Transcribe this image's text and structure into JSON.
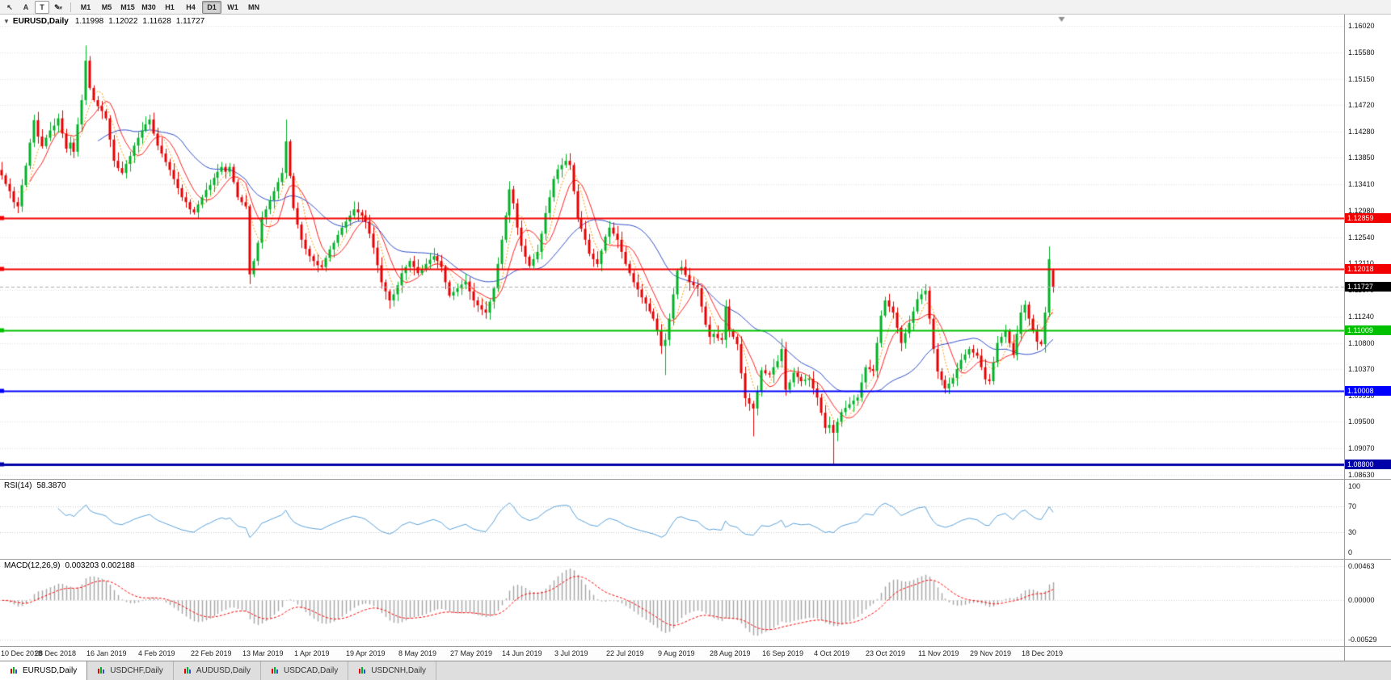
{
  "toolbar": {
    "tools": [
      {
        "id": "cursor-tool",
        "glyph": "↖"
      },
      {
        "id": "crosshair-tool",
        "glyph": "A"
      },
      {
        "id": "text-tool",
        "glyph": "T"
      },
      {
        "id": "draw-tool",
        "glyph": "✎"
      }
    ],
    "timeframes": [
      "M1",
      "M5",
      "M15",
      "M30",
      "H1",
      "H4",
      "D1",
      "W1",
      "MN"
    ],
    "active_timeframe": "D1"
  },
  "chart_header": {
    "collapse_glyph": "▼",
    "symbol": "EURUSD,Daily",
    "open": "1.11998",
    "high": "1.12022",
    "low": "1.11628",
    "close": "1.11727"
  },
  "price_axis": {
    "ticks": [
      "1.16020",
      "1.15580",
      "1.15150",
      "1.14720",
      "1.14280",
      "1.13850",
      "1.13410",
      "1.12980",
      "1.12540",
      "1.12110",
      "1.11670",
      "1.11240",
      "1.10800",
      "1.10370",
      "1.09930",
      "1.09500",
      "1.09070",
      "1.08630"
    ]
  },
  "levels": [
    {
      "label": "1.12859",
      "value": 1.12859,
      "color": "#f20000",
      "width": 2
    },
    {
      "label": "1.12018",
      "value": 1.12018,
      "color": "#f20000",
      "width": 2
    },
    {
      "label": "1.11009",
      "value": 1.11009,
      "color": "#00c000",
      "width": 2
    },
    {
      "label": "1.10008",
      "value": 1.10008,
      "color": "#0000ff",
      "width": 2
    },
    {
      "label": "1.08800",
      "value": 1.088,
      "color": "#0000a8",
      "width": 3
    }
  ],
  "current_price": {
    "label": "1.11727",
    "value": 1.11727
  },
  "rsi_panel": {
    "name": "RSI(14)",
    "value_text": "58.3870",
    "ticks": [
      {
        "label": "100",
        "value": 100
      },
      {
        "label": "70",
        "value": 70
      },
      {
        "label": "30",
        "value": 30
      },
      {
        "label": "0",
        "value": 0
      }
    ],
    "level_lines": [
      70,
      30
    ]
  },
  "macd_panel": {
    "name": "MACD(12,26,9)",
    "value_text": "0.003203 0.002188",
    "ticks": [
      {
        "label": "0.00463",
        "value": 0.00463
      },
      {
        "label": "0.00000",
        "value": 0.0
      },
      {
        "label": "-0.00529",
        "value": -0.00529
      }
    ]
  },
  "date_axis": {
    "labels": [
      "10 Dec 2018",
      "28 Dec 2018",
      "16 Jan 2019",
      "4 Feb 2019",
      "22 Feb 2019",
      "13 Mar 2019",
      "1 Apr 2019",
      "19 Apr 2019",
      "8 May 2019",
      "27 May 2019",
      "14 Jun 2019",
      "3 Jul 2019",
      "22 Jul 2019",
      "9 Aug 2019",
      "28 Aug 2019",
      "16 Sep 2019",
      "4 Oct 2019",
      "23 Oct 2019",
      "11 Nov 2019",
      "29 Nov 2019",
      "18 Dec 2019"
    ],
    "label_every": 13
  },
  "tabs": [
    {
      "label": "EURUSD,Daily",
      "active": true
    },
    {
      "label": "USDCHF,Daily",
      "active": false
    },
    {
      "label": "AUDUSD,Daily",
      "active": false
    },
    {
      "label": "USDCAD,Daily",
      "active": false
    },
    {
      "label": "USDCNH,Daily",
      "active": false
    }
  ],
  "chart_data": {
    "type": "candlestick",
    "symbol": "EURUSD",
    "timeframe": "Daily",
    "price_range": [
      1.0856,
      1.1621
    ],
    "right_margin_fraction": 0.215,
    "up_color": "#00b227",
    "down_color": "#e60000",
    "first_open": 1.1365,
    "closes": [
      1.1356,
      1.1342,
      1.133,
      1.1312,
      1.1305,
      1.134,
      1.1372,
      1.141,
      1.1447,
      1.142,
      1.1404,
      1.1418,
      1.143,
      1.1438,
      1.145,
      1.1425,
      1.14,
      1.141,
      1.1395,
      1.144,
      1.148,
      1.1545,
      1.15,
      1.148,
      1.147,
      1.1462,
      1.145,
      1.1415,
      1.138,
      1.1368,
      1.136,
      1.1375,
      1.1388,
      1.1405,
      1.1418,
      1.143,
      1.144,
      1.1448,
      1.1425,
      1.1405,
      1.1392,
      1.1378,
      1.1365,
      1.135,
      1.1335,
      1.132,
      1.1312,
      1.13,
      1.1295,
      1.1308,
      1.132,
      1.1332,
      1.134,
      1.1352,
      1.1362,
      1.137,
      1.1362,
      1.137,
      1.1345,
      1.132,
      1.1312,
      1.1305,
      1.1193,
      1.1215,
      1.1245,
      1.1287,
      1.13,
      1.1315,
      1.133,
      1.1345,
      1.136,
      1.1412,
      1.1355,
      1.1302,
      1.1275,
      1.125,
      1.1235,
      1.1223,
      1.1215,
      1.1208,
      1.1205,
      1.122,
      1.1234,
      1.1245,
      1.1258,
      1.127,
      1.128,
      1.129,
      1.13,
      1.1295,
      1.129,
      1.128,
      1.126,
      1.1237,
      1.1208,
      1.118,
      1.1165,
      1.115,
      1.116,
      1.1175,
      1.1195,
      1.1205,
      1.1215,
      1.1205,
      1.1195,
      1.1202,
      1.121,
      1.1217,
      1.1223,
      1.1215,
      1.1205,
      1.118,
      1.1158,
      1.1164,
      1.117,
      1.1176,
      1.1181,
      1.1165,
      1.115,
      1.1142,
      1.1135,
      1.113,
      1.1148,
      1.117,
      1.121,
      1.125,
      1.129,
      1.1333,
      1.131,
      1.127,
      1.124,
      1.1222,
      1.1207,
      1.1218,
      1.123,
      1.126,
      1.1294,
      1.132,
      1.135,
      1.1366,
      1.1373,
      1.138,
      1.1373,
      1.133,
      1.1285,
      1.1268,
      1.125,
      1.1227,
      1.1218,
      1.121,
      1.1232,
      1.1255,
      1.127,
      1.126,
      1.125,
      1.123,
      1.121,
      1.1195,
      1.118,
      1.1168,
      1.1155,
      1.1145,
      1.1132,
      1.112,
      1.11,
      1.1075,
      1.1085,
      1.112,
      1.116,
      1.1199,
      1.1205,
      1.1192,
      1.118,
      1.1175,
      1.117,
      1.114,
      1.111,
      1.109,
      1.1095,
      1.1088,
      1.1085,
      1.114,
      1.11,
      1.109,
      1.1078,
      1.103,
      1.0989,
      1.098,
      1.0972,
      1.1,
      1.1035,
      1.103,
      1.1028,
      1.104,
      1.105,
      1.107,
      1.1003,
      1.1015,
      1.1031,
      1.1024,
      1.1017,
      1.1019,
      1.1021,
      1.1005,
      1.099,
      1.0965,
      1.094,
      1.0945,
      1.0932,
      1.095,
      1.0966,
      1.0973,
      1.0979,
      1.0985,
      1.099,
      1.1015,
      1.104,
      1.1037,
      1.1034,
      1.108,
      1.1125,
      1.115,
      1.114,
      1.113,
      1.1105,
      1.108,
      1.1096,
      1.1113,
      1.1132,
      1.1152,
      1.116,
      1.1166,
      1.112,
      1.107,
      1.1033,
      1.1019,
      1.1005,
      1.1013,
      1.1022,
      1.1037,
      1.1052,
      1.1061,
      1.107,
      1.1064,
      1.1059,
      1.104,
      1.102,
      1.1017,
      1.1048,
      1.108,
      1.109,
      1.11,
      1.108,
      1.106,
      1.1095,
      1.113,
      1.1143,
      1.112,
      1.11,
      1.1082,
      1.1078,
      1.113,
      1.1218,
      1.11727
    ],
    "wick_overrides": {
      "21": {
        "high": 1.157
      },
      "62": {
        "low": 1.1177
      },
      "71": {
        "high": 1.1448
      },
      "166": {
        "low": 1.1027
      },
      "188": {
        "low": 1.0926
      },
      "195": {
        "high": 1.1087
      },
      "208": {
        "low": 1.0879
      },
      "262": {
        "high": 1.1239
      },
      "263": {
        "open": 1.11998,
        "high": 1.12022,
        "low": 1.11628,
        "close": 1.11727
      }
    },
    "moving_averages": [
      {
        "period": 5,
        "color": "#ff9900",
        "style": "dotted"
      },
      {
        "period": 8,
        "color": "#ff2020",
        "style": "solid"
      },
      {
        "period": 25,
        "color": "#2f4fc8",
        "style": "solid"
      }
    ],
    "rsi": {
      "period": 14,
      "range": [
        -10,
        110
      ],
      "color": "#58a0d8"
    },
    "macd": {
      "fast": 12,
      "slow": 26,
      "signal": 9,
      "range": [
        -0.0062,
        0.0055
      ],
      "histogram_color": "#a8a8a8",
      "signal_color": "#ff0000"
    }
  }
}
